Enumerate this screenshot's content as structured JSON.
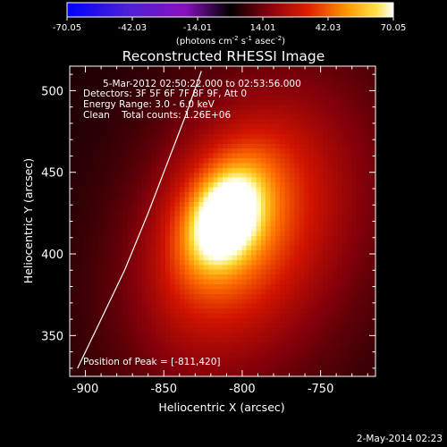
{
  "chart_data": {
    "type": "heatmap",
    "title": "Reconstructed RHESSI Image",
    "xlabel": "Heliocentric X (arcsec)",
    "ylabel": "Heliocentric Y (arcsec)",
    "xlim": [
      -910,
      -715
    ],
    "ylim": [
      325,
      515
    ],
    "xticks": [
      -900,
      -850,
      -800,
      -750
    ],
    "yticks": [
      350,
      400,
      450,
      500
    ],
    "annotations": [
      "5-Mar-2012 02:50:22.000 to 02:53:56.000",
      "Detectors: 3F 5F 6F 7F 8F 9F, Att 0",
      "Energy Range: 3.0 - 6.0 keV",
      "Clean    Total counts: 1.26E+06"
    ],
    "peak_label": "Position of Peak = [-811,420]",
    "peak": {
      "x": -811,
      "y": 420
    },
    "colorbar": {
      "ticks": [
        "-70.05",
        "-42.03",
        "-14.01",
        "14.01",
        "42.03",
        "70.05"
      ],
      "range": [
        -70.05,
        70.05
      ],
      "units_pre": "(photons cm",
      "units_sup1": "-2",
      "units_mid": " s",
      "units_sup2": "-1",
      "units_mid2": " asec",
      "units_sup3": "-2",
      "units_post": ")"
    },
    "limb_curve": [
      [
        -905,
        330
      ],
      [
        -890,
        360
      ],
      [
        -875,
        390
      ],
      [
        -860,
        425
      ],
      [
        -848,
        455
      ],
      [
        -836,
        485
      ],
      [
        -826,
        512
      ]
    ],
    "source_blobs": [
      {
        "x": -811,
        "y": 422,
        "sx": 13,
        "sy": 19,
        "rot": 27,
        "amp": 0.62
      },
      {
        "x": -810,
        "y": 422,
        "sx": 22,
        "sy": 34,
        "rot": 25,
        "amp": 0.3
      },
      {
        "x": -800,
        "y": 415,
        "sx": 40,
        "sy": 60,
        "rot": 28,
        "amp": 0.3
      },
      {
        "x": -790,
        "y": 410,
        "sx": 62,
        "sy": 85,
        "rot": 30,
        "amp": 0.2
      }
    ]
  },
  "footer": {
    "date": "2-May-2014 02:23"
  }
}
